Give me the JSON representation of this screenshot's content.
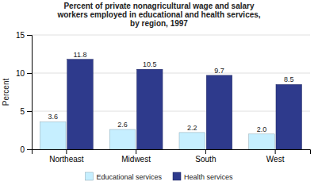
{
  "chart_data": {
    "type": "bar",
    "title": "Percent of private nonagricultural wage and salary\nworkers employed in educational and health services,\nby region, 1997",
    "categories": [
      "Northeast",
      "Midwest",
      "South",
      "West"
    ],
    "series": [
      {
        "name": "Educational services",
        "color": "#c6efff",
        "values": [
          3.6,
          2.6,
          2.2,
          2.0
        ],
        "value_labels": [
          "3.6",
          "2.6",
          "2.2",
          "2.0"
        ]
      },
      {
        "name": "Health services",
        "color": "#2e3a8c",
        "values": [
          11.8,
          10.5,
          9.7,
          8.5
        ]
      }
    ],
    "ylabel": "Percent",
    "ylim": [
      0,
      15
    ],
    "yticks": [
      0,
      5,
      10,
      15
    ],
    "grid": true,
    "data_labels": true,
    "legend": "bottom"
  }
}
